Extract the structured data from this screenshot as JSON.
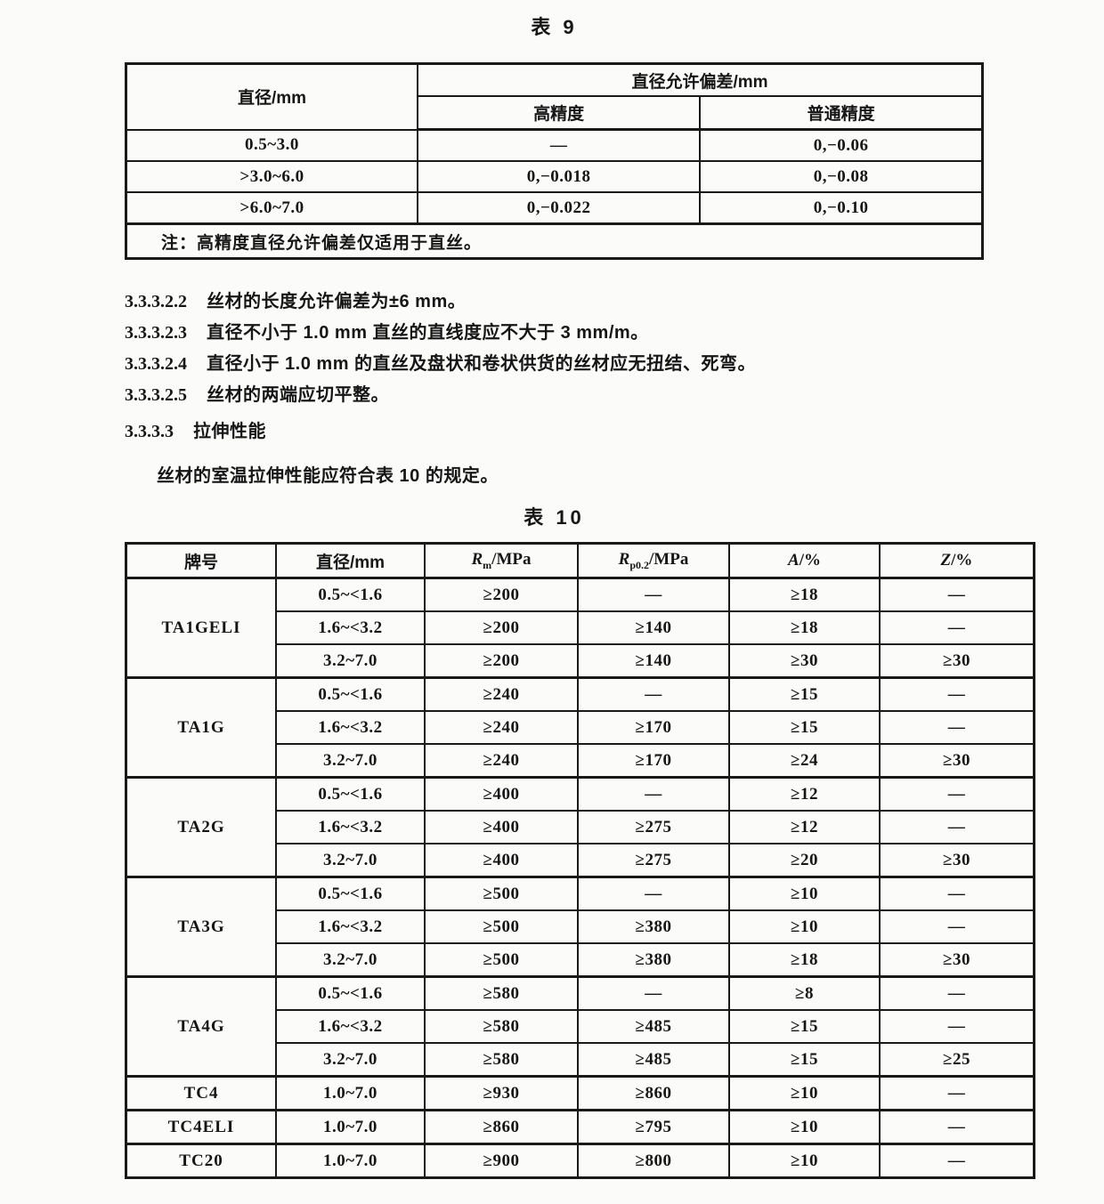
{
  "table9": {
    "title": "表 9",
    "header": {
      "diameter": "直径/mm",
      "tolerance": "直径允许偏差/mm",
      "high": "高精度",
      "normal": "普通精度"
    },
    "rows": [
      [
        "0.5~3.0",
        "—",
        "0,−0.06"
      ],
      [
        ">3.0~6.0",
        "0,−0.018",
        "0,−0.08"
      ],
      [
        ">6.0~7.0",
        "0,−0.022",
        "0,−0.10"
      ]
    ],
    "note": "注：高精度直径允许偏差仅适用于直丝。"
  },
  "paragraphs": [
    {
      "num": "3.3.3.2.2",
      "text": "丝材的长度允许偏差为±6 mm。"
    },
    {
      "num": "3.3.3.2.3",
      "text": "直径不小于 1.0 mm 直丝的直线度应不大于 3 mm/m。"
    },
    {
      "num": "3.3.3.2.4",
      "text": "直径小于 1.0 mm 的直丝及盘状和卷状供货的丝材应无扭结、死弯。"
    },
    {
      "num": "3.3.3.2.5",
      "text": "丝材的两端应切平整。"
    }
  ],
  "section": {
    "num": "3.3.3.3",
    "title": "拉伸性能"
  },
  "intro": "丝材的室温拉伸性能应符合表 10 的规定。",
  "table10": {
    "title": "表 10",
    "headers": [
      {
        "label": "牌号"
      },
      {
        "label": "直径/mm"
      },
      {
        "sym": "R",
        "sub": "m",
        "unit": "/MPa"
      },
      {
        "sym": "R",
        "sub": "p0.2",
        "unit": "/MPa"
      },
      {
        "sym": "A",
        "sub": "",
        "unit": "/%"
      },
      {
        "sym": "Z",
        "sub": "",
        "unit": "/%"
      }
    ],
    "groups": [
      {
        "grade": "TA1GELI",
        "rows": [
          [
            "0.5~<1.6",
            "≥200",
            "—",
            "≥18",
            "—"
          ],
          [
            "1.6~<3.2",
            "≥200",
            "≥140",
            "≥18",
            "—"
          ],
          [
            "3.2~7.0",
            "≥200",
            "≥140",
            "≥30",
            "≥30"
          ]
        ]
      },
      {
        "grade": "TA1G",
        "rows": [
          [
            "0.5~<1.6",
            "≥240",
            "—",
            "≥15",
            "—"
          ],
          [
            "1.6~<3.2",
            "≥240",
            "≥170",
            "≥15",
            "—"
          ],
          [
            "3.2~7.0",
            "≥240",
            "≥170",
            "≥24",
            "≥30"
          ]
        ]
      },
      {
        "grade": "TA2G",
        "rows": [
          [
            "0.5~<1.6",
            "≥400",
            "—",
            "≥12",
            "—"
          ],
          [
            "1.6~<3.2",
            "≥400",
            "≥275",
            "≥12",
            "—"
          ],
          [
            "3.2~7.0",
            "≥400",
            "≥275",
            "≥20",
            "≥30"
          ]
        ]
      },
      {
        "grade": "TA3G",
        "rows": [
          [
            "0.5~<1.6",
            "≥500",
            "—",
            "≥10",
            "—"
          ],
          [
            "1.6~<3.2",
            "≥500",
            "≥380",
            "≥10",
            "—"
          ],
          [
            "3.2~7.0",
            "≥500",
            "≥380",
            "≥18",
            "≥30"
          ]
        ]
      },
      {
        "grade": "TA4G",
        "rows": [
          [
            "0.5~<1.6",
            "≥580",
            "—",
            "≥8",
            "—"
          ],
          [
            "1.6~<3.2",
            "≥580",
            "≥485",
            "≥15",
            "—"
          ],
          [
            "3.2~7.0",
            "≥580",
            "≥485",
            "≥15",
            "≥25"
          ]
        ]
      },
      {
        "grade": "TC4",
        "rows": [
          [
            "1.0~7.0",
            "≥930",
            "≥860",
            "≥10",
            "—"
          ]
        ]
      },
      {
        "grade": "TC4ELI",
        "rows": [
          [
            "1.0~7.0",
            "≥860",
            "≥795",
            "≥10",
            "—"
          ]
        ]
      },
      {
        "grade": "TC20",
        "rows": [
          [
            "1.0~7.0",
            "≥900",
            "≥800",
            "≥10",
            "—"
          ]
        ]
      }
    ]
  }
}
